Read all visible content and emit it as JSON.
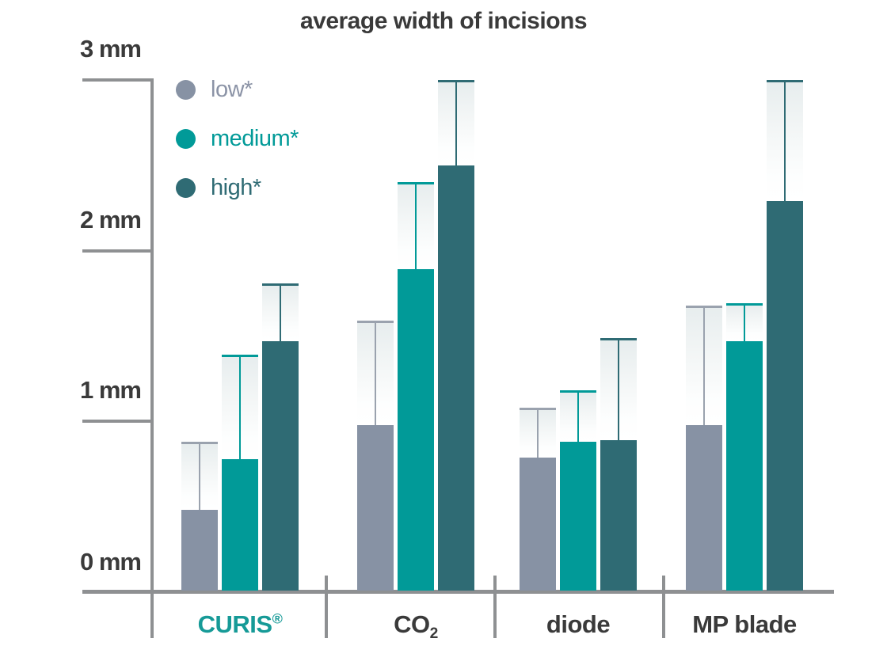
{
  "title": "average width of incisions",
  "y_axis": {
    "unit": "mm",
    "labels": [
      "3 mm",
      "2 mm",
      "1 mm",
      "0 mm"
    ],
    "tick_values": [
      3,
      2,
      1,
      0
    ]
  },
  "legend": {
    "position": "top-left",
    "items": [
      {
        "label": "low*",
        "color": "#8792a4",
        "text_color": "#8b93a6"
      },
      {
        "label": "medium*",
        "color": "#019a98",
        "text_color": "#019a98"
      },
      {
        "label": "high*",
        "color": "#2f6b74",
        "text_color": "#2f6b74"
      }
    ]
  },
  "chart_data": {
    "type": "bar",
    "title": "average width of incisions",
    "categories": [
      "CURIS®",
      "CO2",
      "diode",
      "MP blade"
    ],
    "categories_display": [
      {
        "text": "CURIS",
        "sup": "®",
        "color": "#169a97"
      },
      {
        "text": "CO",
        "sub": "2",
        "color": "#3a3a3a"
      },
      {
        "text": "diode",
        "color": "#3a3a3a"
      },
      {
        "text": "MP blade",
        "color": "#3a3a3a"
      }
    ],
    "ylabel": "mm",
    "ylim": [
      0,
      3
    ],
    "ytick_labels": [
      "0 mm",
      "1 mm",
      "2 mm",
      "3 mm"
    ],
    "grid": false,
    "legend_position": "top-left",
    "error_bars": "upper",
    "series": [
      {
        "name": "low*",
        "color": "#8792a4",
        "cap_color": "#9aa2ae",
        "values": [
          0.48,
          0.98,
          0.79,
          0.98
        ],
        "err_top": [
          0.88,
          1.59,
          1.08,
          1.68
        ]
      },
      {
        "name": "medium*",
        "color": "#019a98",
        "cap_color": "#019a98",
        "values": [
          0.78,
          1.89,
          0.88,
          1.47
        ],
        "err_top": [
          1.39,
          2.4,
          1.18,
          1.69
        ]
      },
      {
        "name": "high*",
        "color": "#2f6b74",
        "cap_color": "#2f6b74",
        "values": [
          1.47,
          2.5,
          0.89,
          2.29
        ],
        "err_top": [
          1.81,
          3.0,
          1.49,
          3.0
        ]
      }
    ]
  }
}
